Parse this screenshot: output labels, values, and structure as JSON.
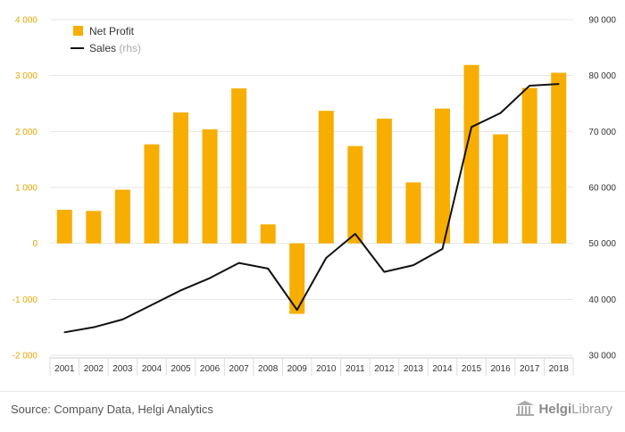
{
  "chart_data": {
    "type": "bar",
    "categories": [
      "2001",
      "2002",
      "2003",
      "2004",
      "2005",
      "2006",
      "2007",
      "2008",
      "2009",
      "2010",
      "2011",
      "2012",
      "2013",
      "2014",
      "2015",
      "2016",
      "2017",
      "2018"
    ],
    "series": [
      {
        "name": "Net Profit",
        "type": "bar",
        "axis": "left",
        "color": "#f7ae00",
        "values": [
          600,
          580,
          960,
          1770,
          2340,
          2040,
          2770,
          340,
          -1260,
          2370,
          1740,
          2230,
          1090,
          2410,
          3190,
          1950,
          2780,
          3050
        ]
      },
      {
        "name": "Sales",
        "type": "line",
        "axis": "right",
        "color": "#111111",
        "values": [
          34100,
          35000,
          36400,
          39000,
          41600,
          43800,
          46500,
          45500,
          38100,
          47400,
          51700,
          44900,
          46100,
          49000,
          70800,
          73300,
          78200,
          78500
        ]
      }
    ],
    "legend": [
      {
        "label": "Net Profit",
        "note": ""
      },
      {
        "label": "Sales",
        "note": "(rhs)"
      }
    ],
    "left_axis": {
      "ylim": [
        -2000,
        4000
      ],
      "ticks": [
        "-2 000",
        "-1 000",
        "0",
        "1 000",
        "2 000",
        "3 000",
        "4 000"
      ],
      "values": [
        -2000,
        -1000,
        0,
        1000,
        2000,
        3000,
        4000
      ]
    },
    "right_axis": {
      "ylim": [
        30000,
        90000
      ],
      "ticks": [
        "30 000",
        "40 000",
        "50 000",
        "60 000",
        "70 000",
        "80 000",
        "90 000"
      ],
      "values": [
        30000,
        40000,
        50000,
        60000,
        70000,
        80000,
        90000
      ]
    },
    "legend_placement": "top-left",
    "grid": true
  },
  "footer": {
    "source": "Source: Company Data, Helgi Analytics",
    "brand_prefix": "Helgi",
    "brand_suffix": "Library"
  },
  "colors": {
    "bar": "#f7ae00",
    "line": "#111111",
    "left_ticks": "#e8a600"
  }
}
